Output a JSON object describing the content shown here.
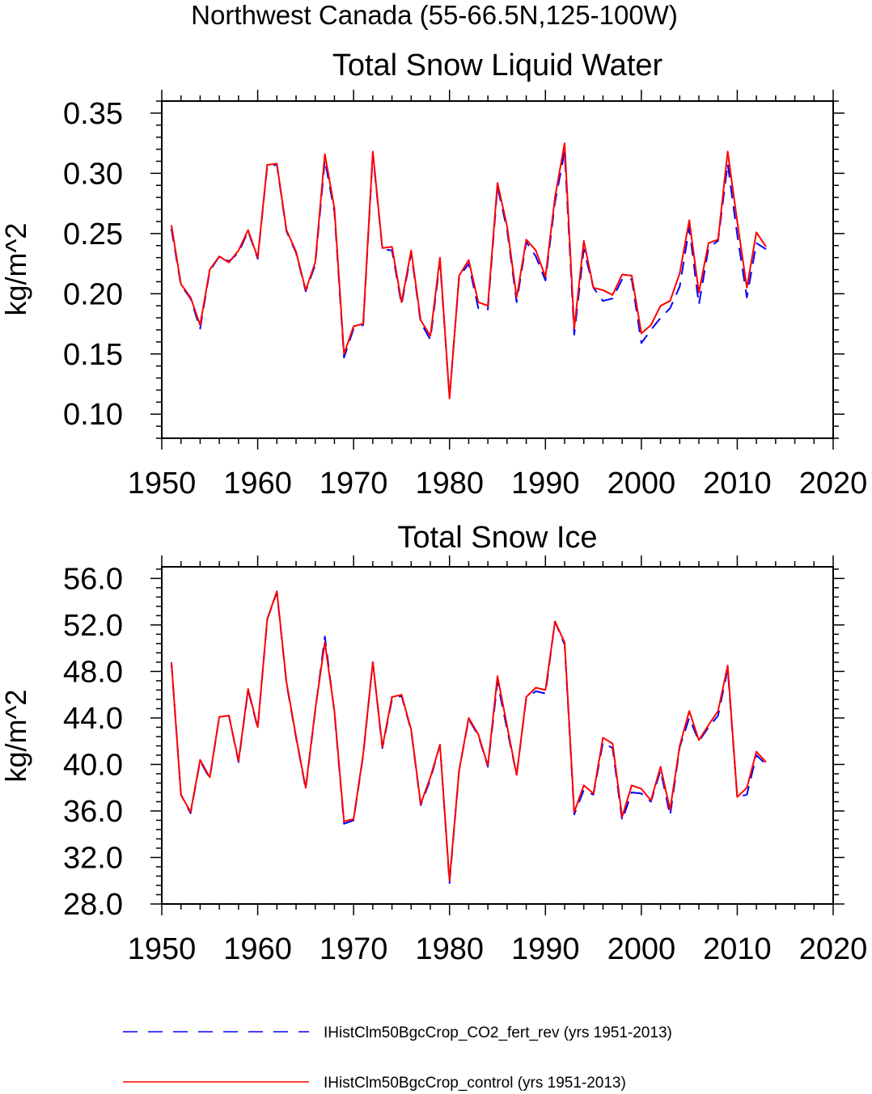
{
  "figure": {
    "suptitle": "Northwest Canada (55-66.5N,125-100W)",
    "legend": [
      {
        "label": "IHistClm50BgcCrop_CO2_fert_rev (yrs 1951-2013)",
        "color": "#0000ff",
        "dash": "dashed"
      },
      {
        "label": "IHistClm50BgcCrop_control (yrs 1951-2013)",
        "color": "#ff0000",
        "dash": "solid"
      }
    ]
  },
  "chart_data": [
    {
      "type": "line",
      "title": "Total Snow Liquid Water",
      "xlabel": "",
      "ylabel": "kg/m^2",
      "xlim": [
        1950,
        2020
      ],
      "ylim": [
        0.08,
        0.36
      ],
      "x_ticks": [
        "1950",
        "1960",
        "1970",
        "1980",
        "1990",
        "2000",
        "2010",
        "2020"
      ],
      "y_ticks": [
        "0.10",
        "0.15",
        "0.20",
        "0.25",
        "0.30",
        "0.35"
      ],
      "x": [
        1951,
        1952,
        1953,
        1954,
        1955,
        1956,
        1957,
        1958,
        1959,
        1960,
        1961,
        1962,
        1963,
        1964,
        1965,
        1966,
        1967,
        1968,
        1969,
        1970,
        1971,
        1972,
        1973,
        1974,
        1975,
        1976,
        1977,
        1978,
        1979,
        1980,
        1981,
        1982,
        1983,
        1984,
        1985,
        1986,
        1987,
        1988,
        1989,
        1990,
        1991,
        1992,
        1993,
        1994,
        1995,
        1996,
        1997,
        1998,
        1999,
        2000,
        2001,
        2002,
        2003,
        2004,
        2005,
        2006,
        2007,
        2008,
        2009,
        2010,
        2011,
        2012,
        2013
      ],
      "series": [
        {
          "name": "IHistClm50BgcCrop_CO2_fert_rev (yrs 1951-2013)",
          "color": "#0000ff",
          "dash": "dashed",
          "values": [
            0.254,
            0.207,
            0.196,
            0.171,
            0.219,
            0.231,
            0.227,
            0.234,
            0.252,
            0.229,
            0.306,
            0.307,
            0.252,
            0.234,
            0.202,
            0.224,
            0.311,
            0.268,
            0.147,
            0.171,
            0.174,
            0.316,
            0.237,
            0.236,
            0.191,
            0.234,
            0.176,
            0.162,
            0.227,
            0.114,
            0.214,
            0.225,
            0.188,
            0.187,
            0.289,
            0.253,
            0.193,
            0.243,
            0.231,
            0.211,
            0.276,
            0.318,
            0.166,
            0.237,
            0.205,
            0.194,
            0.196,
            0.212,
            0.212,
            0.159,
            0.17,
            0.18,
            0.188,
            0.206,
            0.255,
            0.191,
            0.238,
            0.244,
            0.308,
            0.249,
            0.197,
            0.242,
            0.237
          ]
        },
        {
          "name": "IHistClm50BgcCrop_control (yrs 1951-2013)",
          "color": "#ff0000",
          "dash": "solid",
          "values": [
            0.257,
            0.208,
            0.197,
            0.174,
            0.22,
            0.231,
            0.226,
            0.236,
            0.253,
            0.23,
            0.307,
            0.308,
            0.253,
            0.235,
            0.203,
            0.226,
            0.316,
            0.271,
            0.15,
            0.173,
            0.175,
            0.318,
            0.238,
            0.239,
            0.193,
            0.236,
            0.178,
            0.165,
            0.23,
            0.113,
            0.215,
            0.228,
            0.193,
            0.19,
            0.292,
            0.256,
            0.197,
            0.245,
            0.236,
            0.214,
            0.28,
            0.325,
            0.171,
            0.244,
            0.205,
            0.203,
            0.199,
            0.216,
            0.215,
            0.167,
            0.174,
            0.19,
            0.194,
            0.217,
            0.261,
            0.201,
            0.242,
            0.245,
            0.318,
            0.26,
            0.205,
            0.251,
            0.239
          ]
        }
      ]
    },
    {
      "type": "line",
      "title": "Total Snow Ice",
      "xlabel": "",
      "ylabel": "kg/m^2",
      "xlim": [
        1950,
        2020
      ],
      "ylim": [
        28.0,
        57.0
      ],
      "x_ticks": [
        "1950",
        "1960",
        "1970",
        "1980",
        "1990",
        "2000",
        "2010",
        "2020"
      ],
      "y_ticks": [
        "28.0",
        "32.0",
        "36.0",
        "40.0",
        "44.0",
        "48.0",
        "52.0",
        "56.0"
      ],
      "x": [
        1951,
        1952,
        1953,
        1954,
        1955,
        1956,
        1957,
        1958,
        1959,
        1960,
        1961,
        1962,
        1963,
        1964,
        1965,
        1966,
        1967,
        1968,
        1969,
        1970,
        1971,
        1972,
        1973,
        1974,
        1975,
        1976,
        1977,
        1978,
        1979,
        1980,
        1981,
        1982,
        1983,
        1984,
        1985,
        1986,
        1987,
        1988,
        1989,
        1990,
        1991,
        1992,
        1993,
        1994,
        1995,
        1996,
        1997,
        1998,
        1999,
        2000,
        2001,
        2002,
        2003,
        2004,
        2005,
        2006,
        2007,
        2008,
        2009,
        2010,
        2011,
        2012,
        2013
      ],
      "series": [
        {
          "name": "IHistClm50BgcCrop_CO2_fert_rev (yrs 1951-2013)",
          "color": "#0000ff",
          "dash": "dashed",
          "values": [
            48.8,
            37.4,
            35.8,
            40.3,
            38.8,
            44.1,
            44.2,
            40.2,
            46.4,
            43.1,
            52.5,
            54.8,
            47.0,
            42.3,
            37.9,
            44.6,
            51.0,
            44.5,
            34.9,
            35.2,
            40.8,
            48.8,
            41.4,
            45.6,
            45.9,
            42.9,
            36.5,
            38.7,
            41.7,
            29.8,
            39.5,
            43.9,
            42.5,
            39.8,
            47.1,
            43.0,
            39.1,
            45.7,
            46.3,
            46.1,
            52.3,
            50.3,
            35.7,
            37.8,
            37.4,
            41.9,
            41.4,
            35.2,
            37.6,
            37.5,
            36.8,
            39.5,
            35.6,
            41.5,
            44.0,
            42.0,
            43.2,
            44.2,
            48.2,
            37.2,
            37.4,
            40.8,
            40.0
          ]
        },
        {
          "name": "IHistClm50BgcCrop_control (yrs 1951-2013)",
          "color": "#ff0000",
          "dash": "solid",
          "values": [
            48.8,
            37.4,
            35.9,
            40.4,
            38.9,
            44.1,
            44.2,
            40.3,
            46.5,
            43.2,
            52.5,
            54.9,
            47.1,
            42.4,
            38.0,
            44.7,
            50.5,
            44.6,
            35.1,
            35.3,
            40.9,
            48.8,
            41.5,
            45.8,
            46.0,
            43.0,
            36.6,
            38.9,
            41.7,
            30.0,
            39.5,
            44.0,
            42.6,
            39.9,
            47.6,
            43.3,
            39.1,
            45.8,
            46.6,
            46.4,
            52.3,
            50.5,
            35.9,
            38.2,
            37.5,
            42.3,
            41.8,
            35.5,
            38.2,
            37.9,
            36.9,
            39.8,
            36.1,
            41.6,
            44.6,
            42.1,
            43.4,
            44.6,
            48.5,
            37.2,
            38.0,
            41.1,
            40.2
          ]
        }
      ]
    }
  ]
}
